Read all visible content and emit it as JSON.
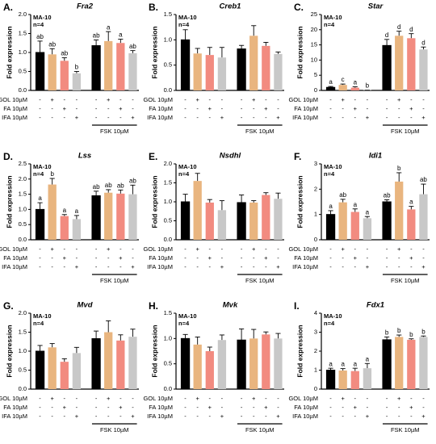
{
  "chart_data": [
    {
      "type": "bar",
      "panel": "A.",
      "title": "Fra2",
      "ylabel": "Fold expression",
      "notes": [
        "MA-10",
        "n=4"
      ],
      "categories": [
        null,
        null,
        null,
        null,
        null,
        null,
        null,
        null
      ],
      "values": [
        1.0,
        0.95,
        0.78,
        0.45,
        1.18,
        1.3,
        1.25,
        0.98
      ],
      "errors": [
        0.3,
        0.15,
        0.08,
        0.05,
        0.15,
        0.25,
        0.1,
        0.07
      ],
      "value_labels": [
        "ab",
        "ab",
        "ab",
        "b",
        "ab",
        "a",
        "a",
        "ab"
      ],
      "colors": [
        "#000000",
        "#e9b57f",
        "#f28b80",
        "#c8c8c8",
        "#000000",
        "#e9b57f",
        "#f28b80",
        "#c8c8c8"
      ],
      "ylim": [
        0,
        2
      ],
      "yticks": [
        {
          "value": 0,
          "label": "0.0"
        },
        0.5,
        {
          "value": 1,
          "label": "1.0"
        },
        1.5,
        {
          "value": 2,
          "label": "2.0"
        }
      ],
      "treatments": [
        {
          "label": "GOL 10µM",
          "signs": [
            "-",
            "+",
            "-",
            "-",
            "-",
            "+",
            "-",
            "-"
          ]
        },
        {
          "label": "FA 10µM",
          "signs": [
            "-",
            "-",
            "+",
            "-",
            "-",
            "-",
            "+",
            "-"
          ]
        },
        {
          "label": "IFA 10µM",
          "signs": [
            "-",
            "-",
            "-",
            "+",
            "-",
            "-",
            "-",
            "+"
          ]
        }
      ],
      "group_label": "FSK 10µM"
    },
    {
      "type": "bar",
      "panel": "B.",
      "title": "Creb1",
      "ylabel": "Fold expression",
      "notes": [
        "MA-10",
        "n=4"
      ],
      "categories": [
        null,
        null,
        null,
        null,
        null,
        null,
        null,
        null
      ],
      "values": [
        1.0,
        0.73,
        0.7,
        0.65,
        0.82,
        1.08,
        0.88,
        0.72
      ],
      "errors": [
        0.2,
        0.1,
        0.15,
        0.2,
        0.07,
        0.2,
        0.07,
        0.04
      ],
      "colors": [
        "#000000",
        "#e9b57f",
        "#f28b80",
        "#c8c8c8",
        "#000000",
        "#e9b57f",
        "#f28b80",
        "#c8c8c8"
      ],
      "ylim": [
        0,
        1.5
      ],
      "yticks": [
        {
          "value": 0,
          "label": "0.0"
        },
        0.5,
        {
          "value": 1,
          "label": "1.0"
        },
        1.5
      ],
      "treatments": [
        {
          "label": "GOL 10µM",
          "signs": [
            "-",
            "+",
            "-",
            "-",
            "-",
            "+",
            "-",
            "-"
          ]
        },
        {
          "label": "FA 10µM",
          "signs": [
            "-",
            "-",
            "+",
            "-",
            "-",
            "-",
            "+",
            "-"
          ]
        },
        {
          "label": "IFA 10µM",
          "signs": [
            "-",
            "-",
            "-",
            "+",
            "-",
            "-",
            "-",
            "+"
          ]
        }
      ],
      "group_label": "FSK 10µM"
    },
    {
      "type": "bar",
      "panel": "C.",
      "title": "Star",
      "ylabel": "Fold expression",
      "notes": [
        "MA-10",
        "n=4"
      ],
      "categories": [
        null,
        null,
        null,
        null,
        null,
        null,
        null,
        null
      ],
      "values": [
        1.0,
        1.8,
        0.9,
        0.1,
        14.8,
        18,
        17.2,
        13.5
      ],
      "errors": [
        0.3,
        0.3,
        0.3,
        0.05,
        2,
        1.5,
        1.5,
        0.8
      ],
      "value_labels": [
        "a",
        "c",
        "a",
        "b",
        "d",
        "d",
        "d",
        "d"
      ],
      "colors": [
        "#000000",
        "#e9b57f",
        "#f28b80",
        "#c8c8c8",
        "#000000",
        "#e9b57f",
        "#f28b80",
        "#c8c8c8"
      ],
      "ylim": [
        0,
        25
      ],
      "yticks": [
        0,
        5,
        10,
        15,
        20,
        25
      ],
      "treatments": [
        {
          "label": "GOL 10µM",
          "signs": [
            "-",
            "+",
            "-",
            "-",
            "-",
            "+",
            "-",
            "-"
          ]
        },
        {
          "label": "FA 10µM",
          "signs": [
            "-",
            "-",
            "+",
            "-",
            "-",
            "-",
            "+",
            "-"
          ]
        },
        {
          "label": "IFA 10µM",
          "signs": [
            "-",
            "-",
            "-",
            "+",
            "-",
            "-",
            "-",
            "+"
          ]
        }
      ],
      "group_label": "FSK 10µM"
    },
    {
      "type": "bar",
      "panel": "D.",
      "title": "Lss",
      "ylabel": "Fold expression",
      "notes": [
        "MA-10",
        "n=4"
      ],
      "categories": [
        null,
        null,
        null,
        null,
        null,
        null,
        null,
        null
      ],
      "values": [
        1.0,
        1.82,
        0.78,
        0.68,
        1.45,
        1.55,
        1.52,
        1.5
      ],
      "errors": [
        0.22,
        0.2,
        0.05,
        0.12,
        0.15,
        0.1,
        0.12,
        0.3
      ],
      "value_labels": [
        "a",
        "b",
        "a",
        "a",
        "ab",
        "ab",
        "ab",
        "ab"
      ],
      "colors": [
        "#000000",
        "#e9b57f",
        "#f28b80",
        "#c8c8c8",
        "#000000",
        "#e9b57f",
        "#f28b80",
        "#c8c8c8"
      ],
      "ylim": [
        0,
        2.5
      ],
      "yticks": [
        {
          "value": 0,
          "label": "0.0"
        },
        0.5,
        {
          "value": 1,
          "label": "1.0"
        },
        1.5,
        {
          "value": 2,
          "label": "2.0"
        },
        2.5
      ],
      "treatments": [
        {
          "label": "GOL 10µM",
          "signs": [
            "-",
            "+",
            "-",
            "-",
            "-",
            "+",
            "-",
            "-"
          ]
        },
        {
          "label": "FA 10µM",
          "signs": [
            "-",
            "-",
            "+",
            "-",
            "-",
            "-",
            "+",
            "-"
          ]
        },
        {
          "label": "IFA 10µM",
          "signs": [
            "-",
            "-",
            "-",
            "+",
            "-",
            "-",
            "-",
            "+"
          ]
        }
      ],
      "group_label": "FSK 10µM"
    },
    {
      "type": "bar",
      "panel": "E.",
      "title": "Nsdhl",
      "ylabel": "Fold expression",
      "notes": [
        "MA-10",
        "n=4"
      ],
      "categories": [
        null,
        null,
        null,
        null,
        null,
        null,
        null,
        null
      ],
      "values": [
        1.0,
        1.55,
        0.98,
        0.78,
        0.98,
        0.98,
        1.18,
        1.08
      ],
      "errors": [
        0.2,
        0.2,
        0.08,
        0.25,
        0.2,
        0.05,
        0.06,
        0.15
      ],
      "colors": [
        "#000000",
        "#e9b57f",
        "#f28b80",
        "#c8c8c8",
        "#000000",
        "#e9b57f",
        "#f28b80",
        "#c8c8c8"
      ],
      "ylim": [
        0,
        2
      ],
      "yticks": [
        {
          "value": 0,
          "label": "0.0"
        },
        0.5,
        {
          "value": 1,
          "label": "1.0"
        },
        1.5,
        {
          "value": 2,
          "label": "2.0"
        }
      ],
      "treatments": [
        {
          "label": "GOL 10µM",
          "signs": [
            "-",
            "+",
            "-",
            "-",
            "-",
            "+",
            "-",
            "-"
          ]
        },
        {
          "label": "FA 10µM",
          "signs": [
            "-",
            "-",
            "+",
            "-",
            "-",
            "-",
            "+",
            "-"
          ]
        },
        {
          "label": "IFA 10µM",
          "signs": [
            "-",
            "-",
            "-",
            "+",
            "-",
            "-",
            "-",
            "+"
          ]
        }
      ],
      "group_label": "FSK 10µM"
    },
    {
      "type": "bar",
      "panel": "F.",
      "title": "Idi1",
      "ylabel": "Fold expression",
      "notes": [
        "MA-10",
        "n=4"
      ],
      "categories": [
        null,
        null,
        null,
        null,
        null,
        null,
        null,
        null
      ],
      "values": [
        1.0,
        1.48,
        1.1,
        0.85,
        1.5,
        2.3,
        1.2,
        1.8
      ],
      "errors": [
        0.15,
        0.12,
        0.12,
        0.07,
        0.08,
        0.35,
        0.12,
        0.4
      ],
      "value_labels": [
        "a",
        "ab",
        "a",
        "a",
        "ab",
        "b",
        "a",
        "ab"
      ],
      "colors": [
        "#000000",
        "#e9b57f",
        "#f28b80",
        "#c8c8c8",
        "#000000",
        "#e9b57f",
        "#f28b80",
        "#c8c8c8"
      ],
      "ylim": [
        0,
        3
      ],
      "yticks": [
        0,
        1,
        2,
        3
      ],
      "treatments": [
        {
          "label": "GOL 10µM",
          "signs": [
            "-",
            "+",
            "-",
            "-",
            "-",
            "+",
            "-",
            "-"
          ]
        },
        {
          "label": "FA 10µM",
          "signs": [
            "-",
            "-",
            "+",
            "-",
            "-",
            "-",
            "+",
            "-"
          ]
        },
        {
          "label": "IFA 10µM",
          "signs": [
            "-",
            "-",
            "-",
            "+",
            "-",
            "-",
            "-",
            "+"
          ]
        }
      ],
      "group_label": "FSK 10µM"
    },
    {
      "type": "bar",
      "panel": "G.",
      "title": "Mvd",
      "ylabel": "Fold expression",
      "notes": [
        "MA-10",
        "n=4"
      ],
      "categories": [
        null,
        null,
        null,
        null,
        null,
        null,
        null,
        null
      ],
      "values": [
        1.0,
        1.1,
        0.72,
        0.95,
        1.33,
        1.5,
        1.28,
        1.38
      ],
      "errors": [
        0.15,
        0.1,
        0.08,
        0.15,
        0.2,
        0.3,
        0.15,
        0.2
      ],
      "colors": [
        "#000000",
        "#e9b57f",
        "#f28b80",
        "#c8c8c8",
        "#000000",
        "#e9b57f",
        "#f28b80",
        "#c8c8c8"
      ],
      "ylim": [
        0,
        2
      ],
      "yticks": [
        {
          "value": 0,
          "label": "0.0"
        },
        0.5,
        {
          "value": 1,
          "label": "1.0"
        },
        1.5,
        {
          "value": 2,
          "label": "2.0"
        }
      ],
      "treatments": [
        {
          "label": "GOL 10µM",
          "signs": [
            "-",
            "+",
            "-",
            "-",
            "-",
            "+",
            "-",
            "-"
          ]
        },
        {
          "label": "FA 10µM",
          "signs": [
            "-",
            "-",
            "+",
            "-",
            "-",
            "-",
            "+",
            "-"
          ]
        },
        {
          "label": "IFA 10µM",
          "signs": [
            "-",
            "-",
            "-",
            "+",
            "-",
            "-",
            "-",
            "+"
          ]
        }
      ],
      "group_label": "FSK 10µM"
    },
    {
      "type": "bar",
      "panel": "H.",
      "title": "Mvk",
      "ylabel": "Fold expression",
      "notes": [
        "MA-10",
        "n=4"
      ],
      "categories": [
        null,
        null,
        null,
        null,
        null,
        null,
        null,
        null
      ],
      "values": [
        1.0,
        0.88,
        0.75,
        0.97,
        0.97,
        1.0,
        1.08,
        1.0
      ],
      "errors": [
        0.08,
        0.15,
        0.08,
        0.1,
        0.22,
        0.18,
        0.05,
        0.1
      ],
      "colors": [
        "#000000",
        "#e9b57f",
        "#f28b80",
        "#c8c8c8",
        "#000000",
        "#e9b57f",
        "#f28b80",
        "#c8c8c8"
      ],
      "ylim": [
        0,
        1.5
      ],
      "yticks": [
        {
          "value": 0,
          "label": "0.0"
        },
        0.5,
        {
          "value": 1,
          "label": "1.0"
        },
        1.5
      ],
      "treatments": [
        {
          "label": "GOL 10µM",
          "signs": [
            "-",
            "+",
            "-",
            "-",
            "-",
            "+",
            "-",
            "-"
          ]
        },
        {
          "label": "FA 10µM",
          "signs": [
            "-",
            "-",
            "+",
            "-",
            "-",
            "-",
            "+",
            "-"
          ]
        },
        {
          "label": "IFA 10µM",
          "signs": [
            "-",
            "-",
            "-",
            "+",
            "-",
            "-",
            "-",
            "+"
          ]
        }
      ],
      "group_label": "FSK 10µM"
    },
    {
      "type": "bar",
      "panel": "I.",
      "title": "Fdx1",
      "ylabel": "Fold expression",
      "notes": [
        "MA-10",
        "n=4"
      ],
      "categories": [
        null,
        null,
        null,
        null,
        null,
        null,
        null,
        null
      ],
      "values": [
        1.0,
        0.98,
        0.95,
        1.1,
        2.6,
        2.75,
        2.6,
        2.75
      ],
      "errors": [
        0.1,
        0.1,
        0.15,
        0.25,
        0.15,
        0.1,
        0.05,
        0.05
      ],
      "value_labels": [
        "a",
        "a",
        "a",
        "a",
        "b",
        "b",
        "b",
        "b"
      ],
      "colors": [
        "#000000",
        "#e9b57f",
        "#f28b80",
        "#c8c8c8",
        "#000000",
        "#e9b57f",
        "#f28b80",
        "#c8c8c8"
      ],
      "ylim": [
        0,
        4
      ],
      "yticks": [
        0,
        1,
        2,
        3,
        4
      ],
      "treatments": [
        {
          "label": "GOL 10µM",
          "signs": [
            "-",
            "+",
            "-",
            "-",
            "-",
            "+",
            "-",
            "-"
          ]
        },
        {
          "label": "FA 10µM",
          "signs": [
            "-",
            "-",
            "+",
            "-",
            "-",
            "-",
            "+",
            "-"
          ]
        },
        {
          "label": "IFA 10µM",
          "signs": [
            "-",
            "-",
            "-",
            "+",
            "-",
            "-",
            "-",
            "+"
          ]
        }
      ],
      "group_label": "FSK 10µM"
    }
  ]
}
